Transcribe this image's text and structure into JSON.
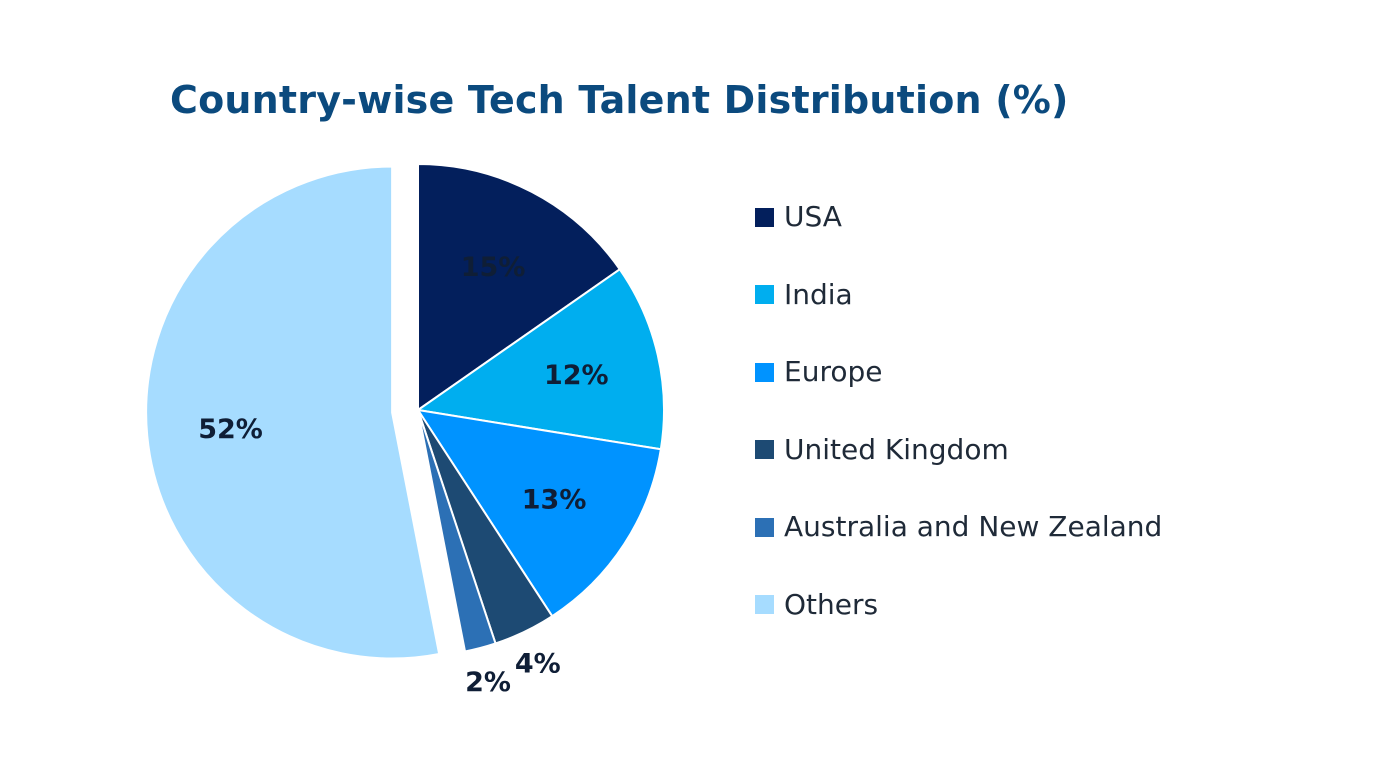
{
  "chart_data": {
    "type": "pie",
    "title": "Country-wise Tech Talent Distribution (%)",
    "categories": [
      "USA",
      "India",
      "Europe",
      "United Kingdom",
      "Australia and New Zealand",
      "Others"
    ],
    "values": [
      15,
      12,
      13,
      4,
      2,
      52
    ],
    "labels": [
      "15%",
      "12%",
      "13%",
      "4%",
      "2%",
      "52%"
    ],
    "colors": [
      "#031f5c",
      "#00aeef",
      "#0093ff",
      "#1d4a73",
      "#2c70b5",
      "#a6dcff"
    ],
    "exploded": [
      "Others"
    ],
    "legend_position": "right"
  }
}
